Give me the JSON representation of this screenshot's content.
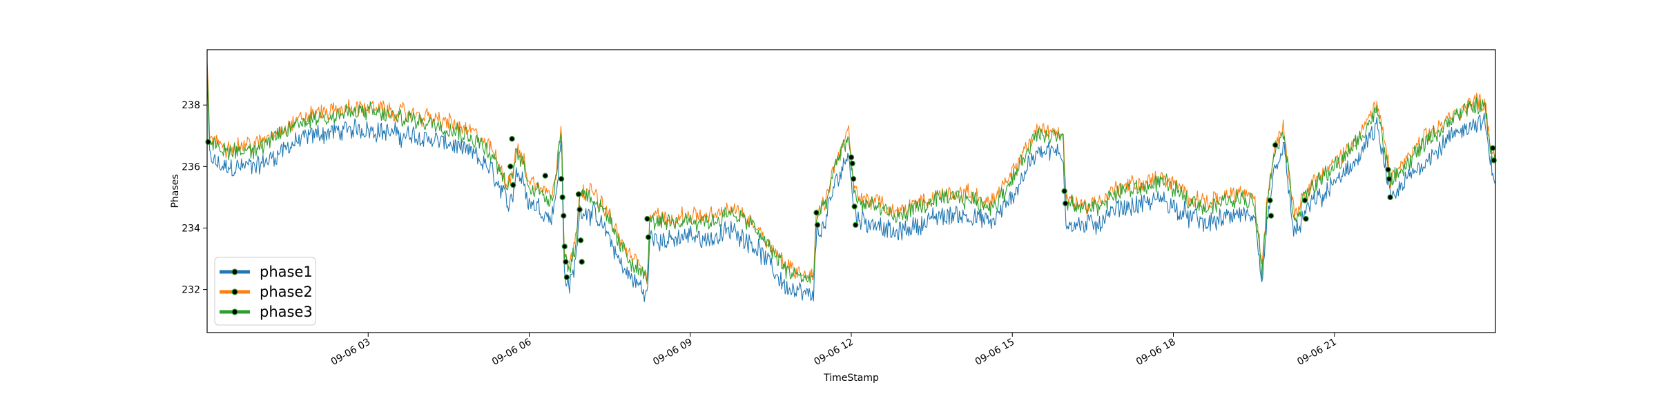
{
  "chart_data": {
    "type": "line",
    "title": "",
    "xlabel": "TimeStamp",
    "ylabel": "Phases",
    "xlim": [
      0,
      24
    ],
    "ylim": [
      230.6,
      239.8
    ],
    "yticks": [
      232,
      234,
      236,
      238
    ],
    "xticks": [
      {
        "x": 3,
        "label": "09-06 03"
      },
      {
        "x": 6,
        "label": "09-06 06"
      },
      {
        "x": 9,
        "label": "09-06 09"
      },
      {
        "x": 12,
        "label": "09-06 12"
      },
      {
        "x": 15,
        "label": "09-06 15"
      },
      {
        "x": 18,
        "label": "09-06 18"
      },
      {
        "x": 21,
        "label": "09-06 21"
      }
    ],
    "legend_position": "lower-left",
    "series": [
      {
        "name": "phase1",
        "color": "#1f77b4",
        "offset": -0.55,
        "spread": 0.28
      },
      {
        "name": "phase2",
        "color": "#ff7f0e",
        "offset": 0.15,
        "spread": 0.22
      },
      {
        "name": "phase3",
        "color": "#2ca02c",
        "offset": 0.0,
        "spread": 0.24
      }
    ],
    "baseline": {
      "x": [
        0,
        0.05,
        0.3,
        1,
        1.5,
        2,
        2.5,
        3,
        3.5,
        4,
        4.5,
        5,
        5.3,
        5.6,
        5.7,
        5.75,
        5.9,
        6,
        6.2,
        6.4,
        6.5,
        6.6,
        6.65,
        6.75,
        6.85,
        6.95,
        7.2,
        7.5,
        7.7,
        7.9,
        8.1,
        8.2,
        8.25,
        8.6,
        9,
        9.4,
        9.8,
        10.2,
        10.5,
        10.8,
        11.1,
        11.3,
        11.35,
        11.5,
        11.7,
        11.95,
        12.05,
        12.2,
        12.5,
        12.8,
        13,
        13.3,
        13.6,
        14,
        14.3,
        14.6,
        14.9,
        15.1,
        15.3,
        15.5,
        15.8,
        15.95,
        16.0,
        16.3,
        16.6,
        17,
        17.4,
        17.8,
        18.2,
        18.6,
        18.9,
        19.2,
        19.5,
        19.65,
        19.75,
        19.9,
        20.05,
        20.25,
        20.45,
        20.6,
        20.8,
        21,
        21.3,
        21.6,
        21.8,
        22.0,
        22.05,
        22.3,
        22.6,
        22.9,
        23.2,
        23.5,
        23.8,
        23.9,
        24
      ],
      "y": [
        239.2,
        236.8,
        236.5,
        236.6,
        237.2,
        237.6,
        237.7,
        237.8,
        237.6,
        237.5,
        237.3,
        236.9,
        236.4,
        235.3,
        235.7,
        236.5,
        236.0,
        235.4,
        235.2,
        234.9,
        235.6,
        237.5,
        233.2,
        232.6,
        233.3,
        235.2,
        235.0,
        234.2,
        233.4,
        232.9,
        232.6,
        232.3,
        234.3,
        234.1,
        234.3,
        234.2,
        234.5,
        234.0,
        233.3,
        232.6,
        232.4,
        232.3,
        234.4,
        234.6,
        236.0,
        237.0,
        235.1,
        234.8,
        234.7,
        234.3,
        234.5,
        234.7,
        234.9,
        235.0,
        234.9,
        234.7,
        235.3,
        235.9,
        236.6,
        237.1,
        237.0,
        236.8,
        234.8,
        234.6,
        234.7,
        235.2,
        235.3,
        235.5,
        235.0,
        234.7,
        234.8,
        235.0,
        234.9,
        232.6,
        234.9,
        236.6,
        237.2,
        234.3,
        235.0,
        235.4,
        235.6,
        236.0,
        236.5,
        237.3,
        237.8,
        236.0,
        235.4,
        236.0,
        236.6,
        237.1,
        237.5,
        237.9,
        238.0,
        236.6,
        236.2
      ]
    },
    "markers": [
      {
        "x": 0.02,
        "y": 236.8
      },
      {
        "x": 5.65,
        "y": 236.0
      },
      {
        "x": 5.68,
        "y": 236.9
      },
      {
        "x": 5.7,
        "y": 235.4
      },
      {
        "x": 6.3,
        "y": 235.7
      },
      {
        "x": 6.6,
        "y": 235.6
      },
      {
        "x": 6.62,
        "y": 235.0
      },
      {
        "x": 6.64,
        "y": 234.4
      },
      {
        "x": 6.66,
        "y": 233.4
      },
      {
        "x": 6.68,
        "y": 232.9
      },
      {
        "x": 6.7,
        "y": 232.4
      },
      {
        "x": 6.92,
        "y": 235.1
      },
      {
        "x": 6.94,
        "y": 234.6
      },
      {
        "x": 6.96,
        "y": 233.6
      },
      {
        "x": 6.98,
        "y": 232.9
      },
      {
        "x": 8.2,
        "y": 234.3
      },
      {
        "x": 8.22,
        "y": 233.7
      },
      {
        "x": 11.35,
        "y": 234.5
      },
      {
        "x": 11.37,
        "y": 234.1
      },
      {
        "x": 12.0,
        "y": 236.3
      },
      {
        "x": 12.02,
        "y": 236.1
      },
      {
        "x": 12.04,
        "y": 235.6
      },
      {
        "x": 12.06,
        "y": 234.7
      },
      {
        "x": 12.08,
        "y": 234.1
      },
      {
        "x": 15.97,
        "y": 235.2
      },
      {
        "x": 15.99,
        "y": 234.8
      },
      {
        "x": 19.8,
        "y": 234.9
      },
      {
        "x": 19.82,
        "y": 234.4
      },
      {
        "x": 19.9,
        "y": 236.7
      },
      {
        "x": 20.45,
        "y": 234.9
      },
      {
        "x": 20.47,
        "y": 234.3
      },
      {
        "x": 22.0,
        "y": 235.9
      },
      {
        "x": 22.02,
        "y": 235.6
      },
      {
        "x": 22.04,
        "y": 235.0
      },
      {
        "x": 23.95,
        "y": 236.6
      },
      {
        "x": 23.97,
        "y": 236.2
      }
    ]
  }
}
